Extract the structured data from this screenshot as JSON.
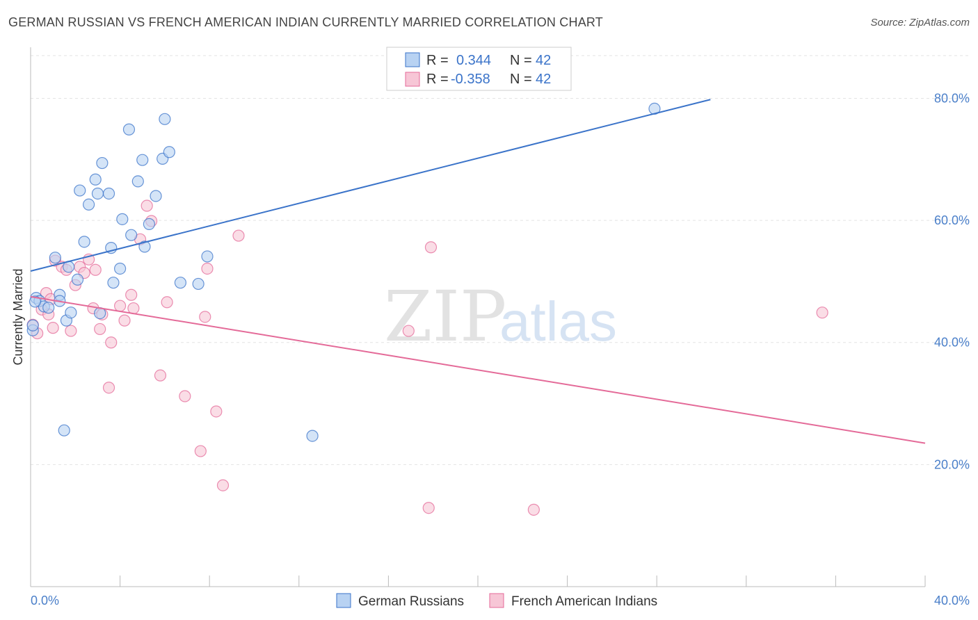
{
  "title": "GERMAN RUSSIAN VS FRENCH AMERICAN INDIAN CURRENTLY MARRIED CORRELATION CHART",
  "source": "Source: ZipAtlas.com",
  "colors": {
    "blue": "#3a73c9",
    "blue_fill": "#b8d2f2",
    "pink": "#e46a98",
    "pink_fill": "#f7c6d6",
    "tick": "#4a7fc9"
  },
  "legend": {
    "row1": {
      "r_label": "R =",
      "r_value": "0.344",
      "n_label": "N =",
      "n_value": "42"
    },
    "row2": {
      "r_label": "R =",
      "r_value": "-0.358",
      "n_label": "N =",
      "n_value": "42"
    }
  },
  "watermark": {
    "zip": "ZIP",
    "atlas": "atlas"
  },
  "chart_data": {
    "type": "scatter",
    "title": "GERMAN RUSSIAN VS FRENCH AMERICAN INDIAN CURRENTLY MARRIED CORRELATION CHART",
    "xlabel": "",
    "ylabel": "Currently Married",
    "xlim": [
      0,
      40
    ],
    "ylim": [
      0,
      87
    ],
    "x_tick_labels": [
      "0.0%",
      "40.0%"
    ],
    "y_tick_labels": [
      "20.0%",
      "40.0%",
      "60.0%",
      "80.0%"
    ],
    "y_ticks": [
      20,
      40,
      60,
      80
    ],
    "grid": true,
    "legend_position": "bottom",
    "series": [
      {
        "name": "German Russians",
        "color": "#3a73c9",
        "trend": {
          "x": [
            0,
            30.4
          ],
          "y": [
            51.7,
            79.8
          ]
        },
        "points": [
          [
            0.25,
            47.3
          ],
          [
            0.4,
            46.8
          ],
          [
            0.6,
            45.9
          ],
          [
            0.8,
            45.7
          ],
          [
            1.1,
            53.9
          ],
          [
            1.3,
            47.8
          ],
          [
            1.3,
            46.8
          ],
          [
            1.5,
            25.6
          ],
          [
            1.6,
            43.6
          ],
          [
            1.7,
            52.4
          ],
          [
            1.8,
            44.9
          ],
          [
            2.1,
            50.3
          ],
          [
            2.2,
            64.9
          ],
          [
            2.4,
            56.5
          ],
          [
            2.6,
            62.6
          ],
          [
            2.9,
            66.7
          ],
          [
            3.0,
            64.4
          ],
          [
            3.1,
            44.8
          ],
          [
            3.2,
            69.4
          ],
          [
            3.5,
            64.4
          ],
          [
            3.6,
            55.5
          ],
          [
            3.7,
            49.8
          ],
          [
            4.0,
            52.1
          ],
          [
            4.1,
            60.2
          ],
          [
            4.4,
            74.9
          ],
          [
            4.5,
            57.6
          ],
          [
            4.8,
            66.4
          ],
          [
            5.0,
            69.9
          ],
          [
            5.1,
            55.7
          ],
          [
            5.3,
            59.4
          ],
          [
            5.6,
            64.0
          ],
          [
            5.9,
            70.1
          ],
          [
            6.0,
            76.6
          ],
          [
            6.2,
            71.2
          ],
          [
            6.7,
            49.8
          ],
          [
            7.5,
            49.6
          ],
          [
            7.9,
            54.1
          ],
          [
            12.6,
            24.7
          ],
          [
            27.9,
            78.3
          ],
          [
            0.1,
            42.0
          ],
          [
            0.1,
            42.8
          ],
          [
            0.2,
            46.7
          ]
        ]
      },
      {
        "name": "French American Indians",
        "color": "#e46a98",
        "trend": {
          "x": [
            0,
            40
          ],
          "y": [
            47.5,
            23.5
          ]
        },
        "points": [
          [
            0.1,
            42.9
          ],
          [
            0.5,
            45.4
          ],
          [
            0.7,
            48.1
          ],
          [
            0.8,
            44.6
          ],
          [
            0.9,
            47.1
          ],
          [
            1.0,
            42.4
          ],
          [
            1.1,
            53.4
          ],
          [
            1.4,
            52.4
          ],
          [
            1.6,
            51.9
          ],
          [
            1.8,
            41.9
          ],
          [
            2.0,
            49.4
          ],
          [
            2.2,
            52.4
          ],
          [
            2.4,
            51.4
          ],
          [
            2.6,
            53.6
          ],
          [
            2.8,
            45.6
          ],
          [
            2.9,
            51.9
          ],
          [
            3.1,
            42.2
          ],
          [
            3.2,
            44.6
          ],
          [
            3.5,
            32.6
          ],
          [
            3.6,
            40.0
          ],
          [
            4.0,
            46.0
          ],
          [
            4.2,
            43.6
          ],
          [
            4.5,
            47.8
          ],
          [
            4.6,
            45.6
          ],
          [
            4.9,
            56.9
          ],
          [
            5.2,
            62.4
          ],
          [
            5.4,
            59.9
          ],
          [
            5.8,
            34.6
          ],
          [
            6.1,
            46.6
          ],
          [
            6.9,
            31.2
          ],
          [
            7.6,
            22.2
          ],
          [
            7.8,
            44.2
          ],
          [
            7.9,
            52.1
          ],
          [
            8.3,
            28.7
          ],
          [
            8.6,
            16.6
          ],
          [
            9.3,
            57.5
          ],
          [
            16.9,
            41.9
          ],
          [
            17.8,
            12.9
          ],
          [
            17.9,
            55.6
          ],
          [
            22.5,
            12.6
          ],
          [
            35.4,
            44.9
          ],
          [
            0.3,
            41.5
          ]
        ]
      }
    ]
  }
}
